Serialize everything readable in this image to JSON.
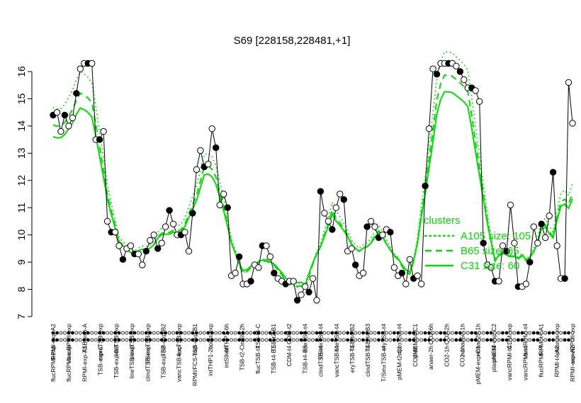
{
  "chart_data": {
    "type": "line",
    "title": "S69 [228158,228481,+1]",
    "xlabel": "",
    "ylabel": "",
    "ylim": [
      7,
      16.6
    ],
    "yticks": [
      7,
      8,
      9,
      10,
      11,
      12,
      13,
      14,
      15,
      16
    ],
    "grid": false,
    "legend": {
      "title": "clusters",
      "placement": "right",
      "entries": [
        {
          "label": "A105 size: 105",
          "style": "dotted",
          "color": "#00dd00"
        },
        {
          "label": "B65 size: 65",
          "style": "dashed",
          "color": "#00dd00"
        },
        {
          "label": "C31 size: 60",
          "style": "solid",
          "color": "#00dd00"
        }
      ]
    },
    "top_axis_labels": [
      "RPMI-exp-A2",
      "vancRPMI-exp",
      "TSB-exp-A",
      "ciproTSB-exp",
      "lineTSB-exp",
      "clindTSB-exp",
      "T/SmxTSB-exp",
      "TSB-exp-B2",
      "flucTSB-exp",
      "TSB-exp-B1",
      "colist-exp",
      "intTHP1-6h",
      "intS9-2h",
      "TSB-t4-C",
      "TSB-t2-B1",
      "CDM-t2",
      "lineTSB-t4",
      "T/SmxTSB-t4",
      "lineTSB-t4",
      "TSB-t4-B2",
      "TSB-t4-B3",
      "eryTSB-t4",
      "ciproTSB-t4",
      "pMEM-t4-C1",
      "CO2-6h",
      "CO2-2h",
      "nonad50-1h",
      "nonad25-1h",
      "pMEM-exp-C2",
      "CDM-exp",
      "vancRPMI-t4",
      "RPMI-t4-A1",
      "plasma-exp",
      "vancRPMI-exp"
    ],
    "bottom_axis_labels": [
      "flucRPMI-exp",
      "flucRPMI-exp",
      "RPMI-exp-A1",
      "TSB-exp-C",
      "TSB-exp-B3",
      "lineTSB-exp",
      "clindTSB-exp",
      "TSB-exp-B2",
      "vancTSB-exp",
      "RPMI/FCS-exp",
      "intTHP1-2h",
      "intS9-6h",
      "TSB-t2-C",
      "flucTSB-t4",
      "TSB-t4-B1",
      "CDM-t4",
      "TSB-t4-B3",
      "clindTSB-t4",
      "vancTSB-t4",
      "eryTSB-t4",
      "clindTSB-t4",
      "T/SmxTSB-t4",
      "pMEM-t2-C1",
      "CO2-6h",
      "anaer-2h",
      "CO2-1h",
      "CO2-1h",
      "pMEM-exp-C1",
      "plasma-t4",
      "vancRPMI-t4",
      "vancRPMI-t4",
      "flucRPMI-t4",
      "RPMI-t4-A2",
      "RPMI-exp-A2"
    ],
    "series": [
      {
        "name": "S69",
        "values": [
          14.4,
          14.5,
          13.8,
          14.4,
          14.0,
          14.3,
          15.2,
          16.1,
          16.3,
          16.3,
          16.3,
          13.5,
          13.5,
          13.8,
          10.5,
          10.1,
          10.1,
          9.6,
          9.1,
          9.5,
          9.6,
          9.3,
          9.3,
          8.9,
          9.4,
          9.8,
          10.0,
          9.5,
          9.7,
          10.3,
          10.9,
          10.4,
          10.0,
          10.0,
          10.1,
          9.4,
          10.8,
          12.4,
          13.1,
          12.5,
          12.6,
          13.9,
          13.2,
          11.1,
          11.5,
          11.0,
          8.5,
          8.6,
          9.2,
          8.2,
          8.2,
          8.3,
          8.9,
          8.8,
          9.6,
          9.6,
          9.2,
          8.6,
          8.4,
          8.3,
          8.2,
          8.3,
          8.3,
          7.6,
          7.8,
          8.1,
          7.9,
          8.4,
          7.6,
          11.6,
          10.8,
          10.5,
          10.2,
          11.0,
          11.5,
          11.3,
          9.4,
          9.5,
          8.9,
          8.5,
          8.6,
          10.3,
          10.5,
          10.3,
          9.9,
          10.0,
          10.2,
          10.1,
          8.8,
          8.5,
          8.6,
          8.2,
          9.1,
          8.4,
          8.5,
          8.2,
          11.8,
          13.9,
          16.1,
          15.9,
          16.3,
          16.3,
          16.3,
          16.3,
          16.2,
          16.0,
          15.7,
          15.4,
          15.4,
          15.3,
          14.9,
          9.7,
          8.9,
          8.8,
          8.3,
          8.3,
          9.6,
          9.4,
          11.1,
          9.7,
          8.1,
          8.1,
          8.2,
          9.0,
          10.3,
          9.7,
          10.4,
          9.9,
          10.7,
          12.3,
          9.6,
          8.4,
          8.4,
          15.6,
          14.1
        ]
      }
    ]
  }
}
